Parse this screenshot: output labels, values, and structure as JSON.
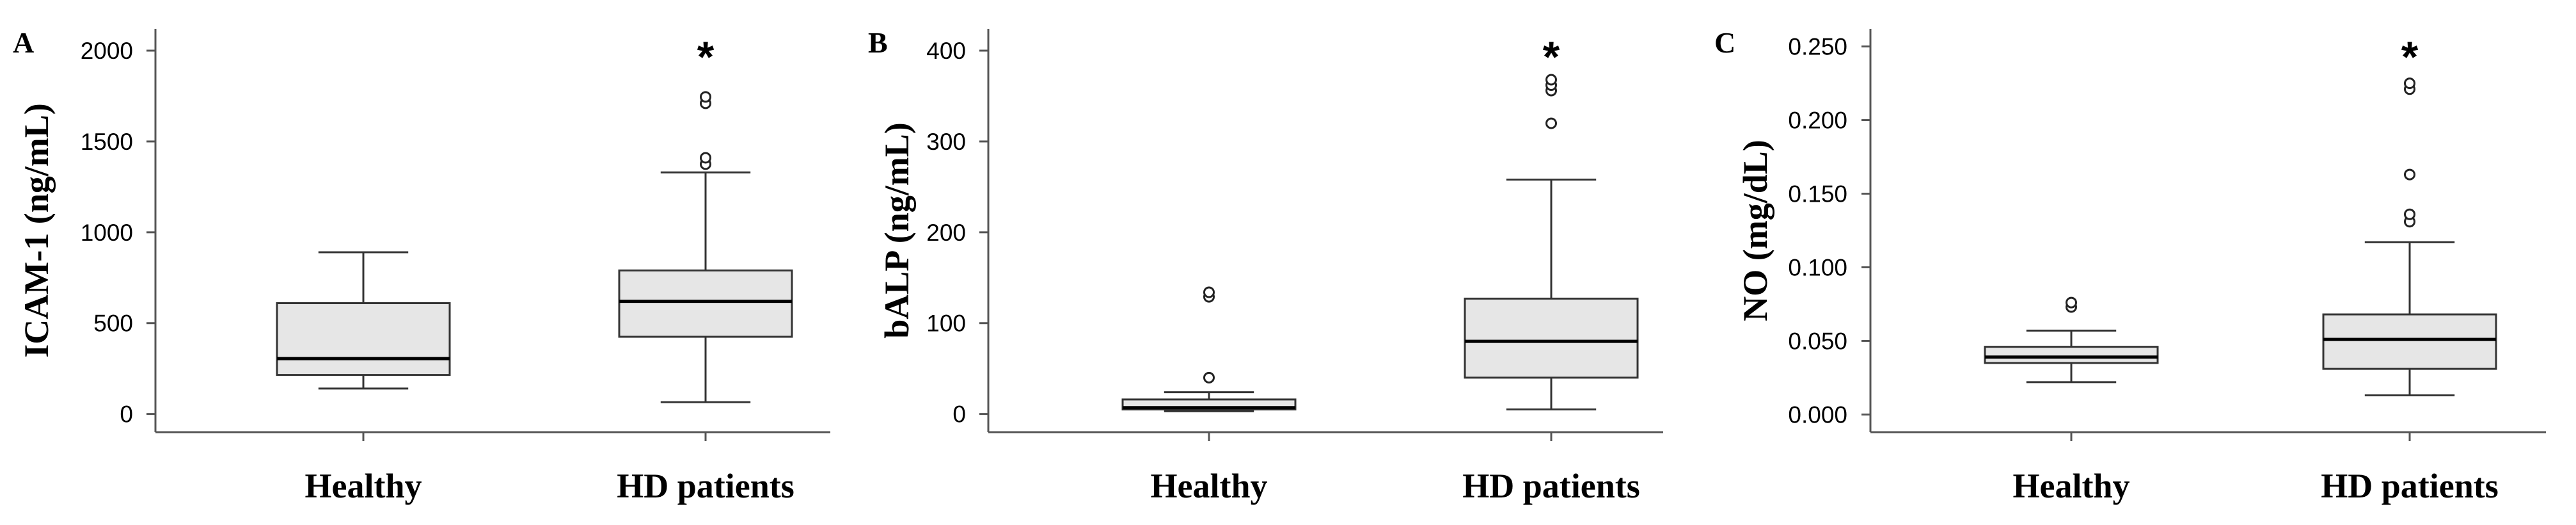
{
  "chart_data": [
    {
      "type": "box",
      "panel": "A",
      "ylabel": "ICAM-1 (ng/mL)",
      "ylim": [
        -100,
        2120
      ],
      "yticks": [
        0,
        500,
        1000,
        1500,
        2000
      ],
      "ytick_labels": [
        "0",
        "500",
        "1000",
        "1500",
        "2000"
      ],
      "categories": [
        "Healthy",
        "HD patients"
      ],
      "boxes": [
        {
          "whisker_low": 140,
          "q1": 215,
          "median": 305,
          "q3": 610,
          "whisker_high": 890,
          "outliers": []
        },
        {
          "whisker_low": 65,
          "q1": 425,
          "median": 620,
          "q3": 790,
          "whisker_high": 1330,
          "outliers": [
            1375,
            1410,
            1710,
            1745
          ]
        }
      ],
      "significance": [
        {
          "category": "HD patients",
          "label": "*"
        }
      ]
    },
    {
      "type": "box",
      "panel": "B",
      "ylabel": "bALP (ng/mL)",
      "ylim": [
        -20,
        424
      ],
      "yticks": [
        0,
        100,
        200,
        300,
        400
      ],
      "ytick_labels": [
        "0",
        "100",
        "200",
        "300",
        "400"
      ],
      "categories": [
        "Healthy",
        "HD patients"
      ],
      "boxes": [
        {
          "whisker_low": 3,
          "q1": 5,
          "median": 7,
          "q3": 16,
          "whisker_high": 24,
          "outliers": [
            40,
            129,
            134
          ]
        },
        {
          "whisker_low": 5,
          "q1": 40,
          "median": 80,
          "q3": 127,
          "whisker_high": 258,
          "outliers": [
            320,
            356,
            362,
            368
          ]
        }
      ],
      "significance": [
        {
          "category": "HD patients",
          "label": "*"
        }
      ]
    },
    {
      "type": "box",
      "panel": "C",
      "ylabel": "NO (mg/dL)",
      "ylim": [
        -0.012,
        0.262
      ],
      "yticks": [
        0,
        0.05,
        0.1,
        0.15,
        0.2,
        0.25
      ],
      "ytick_labels": [
        "0.000",
        "0.050",
        "0.100",
        "0.150",
        "0.200",
        "0.250"
      ],
      "categories": [
        "Healthy",
        "HD patients"
      ],
      "boxes": [
        {
          "whisker_low": 0.022,
          "q1": 0.035,
          "median": 0.039,
          "q3": 0.046,
          "whisker_high": 0.057,
          "outliers": [
            0.073,
            0.076
          ]
        },
        {
          "whisker_low": 0.013,
          "q1": 0.031,
          "median": 0.051,
          "q3": 0.068,
          "whisker_high": 0.117,
          "outliers": [
            0.131,
            0.136,
            0.163,
            0.221,
            0.225
          ]
        }
      ],
      "significance": [
        {
          "category": "HD patients",
          "label": "*"
        }
      ]
    }
  ]
}
